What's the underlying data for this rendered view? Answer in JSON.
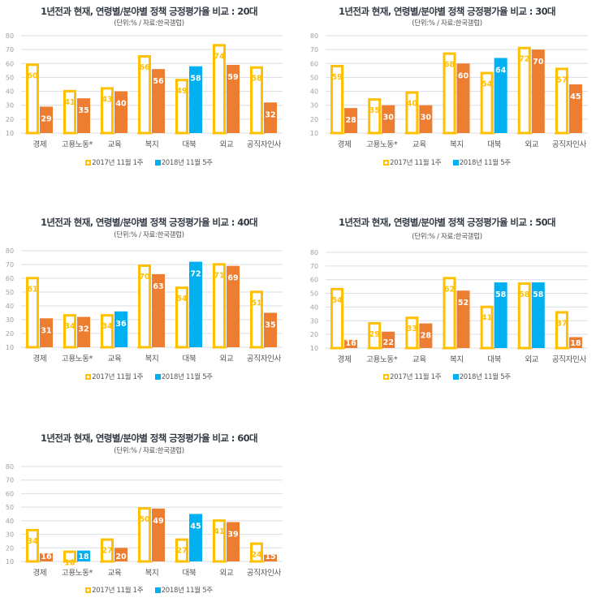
{
  "colors": {
    "old_outline": "#FFC000",
    "new_default": "#ED7D31",
    "new_highlight": "#00B0F0",
    "grid": "#d9dde3",
    "tick": "#a0a0a0"
  },
  "legend": {
    "old": "2017년 11월 1주",
    "new": "2018년 11월 5주"
  },
  "chart_data": [
    {
      "type": "bar",
      "title": "1년전과 현재, 연령별/분야별 정책 긍정평가율 비교 : 20대",
      "subtitle": "(단위:% / 자료:한국갤럽)",
      "xlabel": "",
      "ylabel": "",
      "ylim": [
        10,
        80
      ],
      "yticks": [
        10,
        20,
        30,
        40,
        50,
        60,
        70,
        80
      ],
      "grid": true,
      "legend_position": "bottom",
      "categories": [
        "경제",
        "고용노동*",
        "교육",
        "복지",
        "대북",
        "외교",
        "공직자인사"
      ],
      "series": [
        {
          "name": "2017년 11월 1주",
          "values": [
            60,
            41,
            43,
            66,
            49,
            74,
            58
          ]
        },
        {
          "name": "2018년 11월 5주",
          "values": [
            29,
            35,
            40,
            56,
            58,
            59,
            32
          ],
          "highlight": [
            false,
            false,
            false,
            false,
            true,
            false,
            false
          ]
        }
      ]
    },
    {
      "type": "bar",
      "title": "1년전과 현재, 연령별/분야별 정책 긍정평가율 비교 : 30대",
      "subtitle": "(단위:% / 자료:한국갤럽)",
      "xlabel": "",
      "ylabel": "",
      "ylim": [
        10,
        80
      ],
      "yticks": [
        10,
        20,
        30,
        40,
        50,
        60,
        70,
        80
      ],
      "grid": true,
      "legend_position": "bottom",
      "categories": [
        "경제",
        "고용노동*",
        "교육",
        "복지",
        "대북",
        "외교",
        "공직자인사"
      ],
      "series": [
        {
          "name": "2017년 11월 1주",
          "values": [
            59,
            35,
            40,
            68,
            54,
            72,
            57
          ]
        },
        {
          "name": "2018년 11월 5주",
          "values": [
            28,
            30,
            30,
            60,
            64,
            70,
            45
          ],
          "highlight": [
            false,
            false,
            false,
            false,
            true,
            false,
            false
          ]
        }
      ]
    },
    {
      "type": "bar",
      "title": "1년전과 현재, 연령별/분야별 정책 긍정평가율 비교 : 40대",
      "subtitle": "(단위:% / 자료:한국갤럽)",
      "xlabel": "",
      "ylabel": "",
      "ylim": [
        10,
        80
      ],
      "yticks": [
        10,
        20,
        30,
        40,
        50,
        60,
        70,
        80
      ],
      "grid": true,
      "legend_position": "bottom",
      "categories": [
        "경제",
        "고용노동*",
        "교육",
        "복지",
        "대북",
        "외교",
        "공직자인사"
      ],
      "series": [
        {
          "name": "2017년 11월 1주",
          "values": [
            61,
            34,
            34,
            70,
            54,
            71,
            51
          ]
        },
        {
          "name": "2018년 11월 5주",
          "values": [
            31,
            32,
            36,
            63,
            72,
            69,
            35
          ],
          "highlight": [
            false,
            false,
            true,
            false,
            true,
            false,
            false
          ]
        }
      ]
    },
    {
      "type": "bar",
      "title": "1년전과 현재, 연령별/분야별 정책 긍정평가율 비교 : 50대",
      "subtitle": "(단위:% / 자료:한국갤럽)",
      "xlabel": "",
      "ylabel": "",
      "ylim": [
        10,
        80
      ],
      "yticks": [
        10,
        20,
        30,
        40,
        50,
        60,
        70,
        80
      ],
      "grid": true,
      "legend_position": "bottom",
      "categories": [
        "경제",
        "고용노동*",
        "교육",
        "복지",
        "대북",
        "외교",
        "공직자인사"
      ],
      "series": [
        {
          "name": "2017년 11월 1주",
          "values": [
            54,
            29,
            33,
            62,
            41,
            58,
            37
          ]
        },
        {
          "name": "2018년 11월 5주",
          "values": [
            16,
            22,
            28,
            52,
            58,
            58,
            18
          ],
          "highlight": [
            false,
            false,
            false,
            false,
            true,
            true,
            false
          ]
        }
      ]
    },
    {
      "type": "bar",
      "title": "1년전과 현재, 연령별/분야별 정책 긍정평가율 비교 : 60대",
      "subtitle": "(단위:% / 자료:한국갤럽)",
      "xlabel": "",
      "ylabel": "",
      "ylim": [
        10,
        80
      ],
      "yticks": [
        10,
        20,
        30,
        40,
        50,
        60,
        70,
        80
      ],
      "grid": true,
      "legend_position": "bottom",
      "categories": [
        "경제",
        "고용노동*",
        "교육",
        "복지",
        "대북",
        "외교",
        "공직자인사"
      ],
      "series": [
        {
          "name": "2017년 11월 1주",
          "values": [
            34,
            18,
            27,
            50,
            27,
            41,
            24
          ]
        },
        {
          "name": "2018년 11월 5주",
          "values": [
            16,
            18,
            20,
            49,
            45,
            39,
            15
          ],
          "highlight": [
            false,
            true,
            false,
            false,
            true,
            false,
            false
          ]
        }
      ]
    }
  ]
}
